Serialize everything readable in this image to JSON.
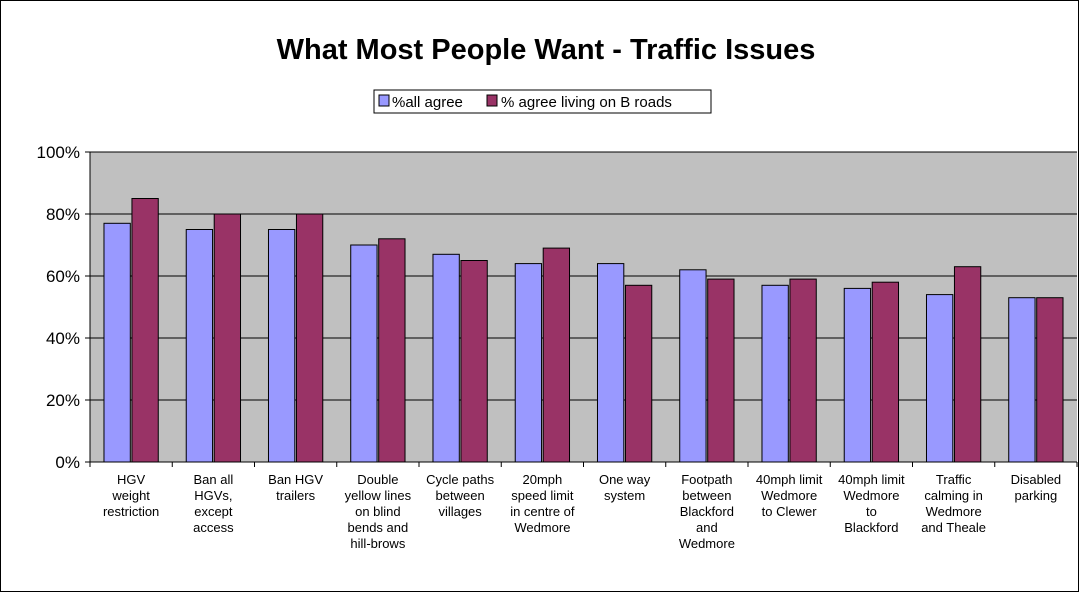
{
  "chart_data": {
    "type": "bar",
    "title": "What Most People Want - Traffic Issues",
    "xlabel": "",
    "ylabel": "",
    "ylim": [
      0,
      100
    ],
    "y_ticks": [
      "0%",
      "20%",
      "40%",
      "60%",
      "80%",
      "100%"
    ],
    "y_tick_values": [
      0,
      20,
      40,
      60,
      80,
      100
    ],
    "grid": true,
    "legend_position": "top",
    "categories": [
      "HGV weight restriction",
      "Ban all HGVs, except access",
      "Ban HGV trailers",
      "Double yellow lines on blind bends and hill-brows",
      "Cycle paths between villages",
      "20mph speed limit in centre of Wedmore",
      "One way system",
      "Footpath between Blackford and Wedmore",
      "40mph limit Wedmore to Clewer",
      "40mph limit Wedmore to Blackford",
      "Traffic calming in Wedmore and Theale",
      "Disabled parking"
    ],
    "category_lines": [
      [
        "HGV",
        "weight",
        "restriction"
      ],
      [
        "Ban all",
        "HGVs,",
        "except",
        "access"
      ],
      [
        "Ban HGV",
        "trailers"
      ],
      [
        "Double",
        "yellow lines",
        "on blind",
        "bends and",
        "hill-brows"
      ],
      [
        "Cycle paths",
        "between",
        "villages"
      ],
      [
        "20mph",
        "speed limit",
        "in centre of",
        "Wedmore"
      ],
      [
        "One way",
        "system"
      ],
      [
        "Footpath",
        "between",
        "Blackford",
        "and",
        "Wedmore"
      ],
      [
        "40mph limit",
        "Wedmore",
        "to Clewer"
      ],
      [
        "40mph limit",
        "Wedmore",
        "to",
        "Blackford"
      ],
      [
        "Traffic",
        "calming in",
        "Wedmore",
        "and Theale"
      ],
      [
        "Disabled",
        "parking"
      ]
    ],
    "series": [
      {
        "name": "%all agree",
        "color": "#9999ff",
        "values": [
          77,
          75,
          75,
          70,
          67,
          64,
          64,
          62,
          57,
          56,
          54,
          53
        ]
      },
      {
        "name": "% agree living on B roads",
        "color": "#993366",
        "values": [
          85,
          80,
          80,
          72,
          65,
          69,
          57,
          59,
          59,
          58,
          63,
          53
        ]
      }
    ],
    "plot_background": "#c0c0c0"
  }
}
